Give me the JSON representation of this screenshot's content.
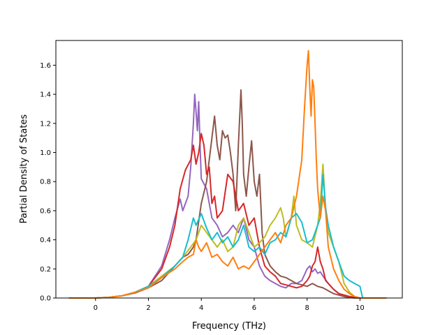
{
  "chart_data": {
    "type": "line",
    "xlabel": "Frequency (THz)",
    "ylabel": "Partial Density of States",
    "xlim": [
      -1.5,
      11.6
    ],
    "ylim": [
      0,
      1.77
    ],
    "xticks": [
      0,
      2,
      4,
      6,
      8,
      10
    ],
    "yticks": [
      0.0,
      0.2,
      0.4,
      0.6,
      0.8,
      1.0,
      1.2,
      1.4,
      1.6
    ],
    "xtick_labels": [
      "0",
      "2",
      "4",
      "6",
      "8",
      "10"
    ],
    "ytick_labels": [
      "0.0",
      "0.2",
      "0.4",
      "0.6",
      "0.8",
      "1.0",
      "1.2",
      "1.4",
      "1.6"
    ],
    "grid": false,
    "series": [
      {
        "color": "#9467bd",
        "x": [
          -1.0,
          0,
          0.5,
          1.0,
          1.5,
          2.0,
          2.5,
          2.8,
          3.0,
          3.2,
          3.3,
          3.5,
          3.6,
          3.7,
          3.75,
          3.8,
          3.85,
          3.9,
          3.95,
          4.0,
          4.2,
          4.4,
          4.6,
          4.8,
          5.0,
          5.2,
          5.4,
          5.6,
          5.8,
          6.0,
          6.2,
          6.4,
          6.6,
          6.8,
          7.0,
          7.2,
          7.4,
          7.6,
          7.8,
          8.0,
          8.1,
          8.2,
          8.3,
          8.4,
          8.5,
          8.6,
          8.8,
          9.0,
          9.2,
          9.4,
          9.6,
          9.8,
          10.0,
          11.0
        ],
        "y": [
          0,
          0,
          0.005,
          0.015,
          0.04,
          0.08,
          0.22,
          0.4,
          0.55,
          0.68,
          0.6,
          0.7,
          0.9,
          1.2,
          1.4,
          1.28,
          1.15,
          1.35,
          1.05,
          0.82,
          0.75,
          0.55,
          0.5,
          0.42,
          0.45,
          0.5,
          0.45,
          0.55,
          0.4,
          0.35,
          0.22,
          0.15,
          0.12,
          0.1,
          0.08,
          0.07,
          0.1,
          0.1,
          0.12,
          0.2,
          0.22,
          0.18,
          0.2,
          0.17,
          0.18,
          0.15,
          0.1,
          0.06,
          0.03,
          0.02,
          0.01,
          0.005,
          0,
          0
        ]
      },
      {
        "color": "#8c564b",
        "x": [
          -1.0,
          0,
          0.5,
          1.0,
          1.5,
          2.0,
          2.5,
          3.0,
          3.3,
          3.5,
          3.7,
          3.8,
          4.0,
          4.2,
          4.4,
          4.5,
          4.6,
          4.7,
          4.8,
          4.9,
          5.0,
          5.1,
          5.2,
          5.3,
          5.4,
          5.5,
          5.55,
          5.6,
          5.7,
          5.8,
          5.9,
          6.0,
          6.1,
          6.2,
          6.3,
          6.4,
          6.6,
          6.8,
          7.0,
          7.2,
          7.4,
          7.6,
          7.8,
          8.0,
          8.2,
          8.4,
          8.6,
          8.8,
          9.0,
          9.2,
          9.4,
          9.6,
          9.8,
          10.0,
          11.0
        ],
        "y": [
          0,
          0,
          0.005,
          0.015,
          0.035,
          0.07,
          0.12,
          0.22,
          0.28,
          0.3,
          0.35,
          0.4,
          0.65,
          0.8,
          1.1,
          1.25,
          1.05,
          0.95,
          1.15,
          1.1,
          1.12,
          1.0,
          0.85,
          0.6,
          1.05,
          1.43,
          1.2,
          0.85,
          0.7,
          0.9,
          1.08,
          0.8,
          0.7,
          0.85,
          0.45,
          0.3,
          0.22,
          0.18,
          0.15,
          0.14,
          0.12,
          0.1,
          0.09,
          0.08,
          0.1,
          0.08,
          0.07,
          0.05,
          0.03,
          0.02,
          0.01,
          0.005,
          0,
          0,
          0
        ]
      },
      {
        "color": "#d62728",
        "x": [
          -1.0,
          0,
          0.5,
          1.0,
          1.5,
          2.0,
          2.5,
          2.8,
          3.0,
          3.2,
          3.4,
          3.6,
          3.7,
          3.8,
          3.9,
          4.0,
          4.1,
          4.2,
          4.3,
          4.4,
          4.5,
          4.6,
          4.8,
          5.0,
          5.2,
          5.4,
          5.6,
          5.8,
          6.0,
          6.2,
          6.4,
          6.6,
          6.8,
          7.0,
          7.2,
          7.4,
          7.6,
          7.8,
          8.0,
          8.1,
          8.2,
          8.3,
          8.4,
          8.5,
          8.6,
          8.7,
          8.8,
          9.0,
          9.2,
          9.4,
          9.6,
          9.8,
          10.0,
          11.0
        ],
        "y": [
          0,
          0,
          0.005,
          0.015,
          0.04,
          0.08,
          0.2,
          0.35,
          0.5,
          0.75,
          0.88,
          0.95,
          1.05,
          0.92,
          1.0,
          1.13,
          1.05,
          0.85,
          0.9,
          0.65,
          0.7,
          0.55,
          0.6,
          0.85,
          0.8,
          0.6,
          0.65,
          0.5,
          0.55,
          0.35,
          0.22,
          0.18,
          0.15,
          0.1,
          0.09,
          0.08,
          0.07,
          0.08,
          0.12,
          0.15,
          0.22,
          0.25,
          0.35,
          0.25,
          0.2,
          0.12,
          0.1,
          0.06,
          0.03,
          0.02,
          0.01,
          0.005,
          0,
          0
        ]
      },
      {
        "color": "#bcbd22",
        "x": [
          -1.0,
          0,
          0.5,
          1.0,
          1.5,
          2.0,
          2.5,
          3.0,
          3.3,
          3.6,
          3.8,
          4.0,
          4.2,
          4.4,
          4.6,
          4.8,
          5.0,
          5.2,
          5.4,
          5.6,
          5.8,
          6.0,
          6.2,
          6.4,
          6.6,
          6.8,
          7.0,
          7.1,
          7.2,
          7.4,
          7.5,
          7.6,
          7.8,
          8.0,
          8.2,
          8.4,
          8.5,
          8.6,
          8.7,
          8.8,
          9.0,
          9.2,
          9.4,
          9.6,
          9.8,
          10.0,
          11.0
        ],
        "y": [
          0,
          0,
          0.005,
          0.015,
          0.04,
          0.08,
          0.15,
          0.22,
          0.28,
          0.35,
          0.4,
          0.5,
          0.45,
          0.4,
          0.35,
          0.4,
          0.32,
          0.35,
          0.5,
          0.55,
          0.45,
          0.35,
          0.38,
          0.42,
          0.5,
          0.55,
          0.62,
          0.55,
          0.42,
          0.55,
          0.7,
          0.5,
          0.4,
          0.38,
          0.35,
          0.5,
          0.65,
          0.92,
          0.6,
          0.45,
          0.35,
          0.25,
          0.1,
          0.04,
          0.01,
          0,
          0
        ]
      },
      {
        "color": "#17becf",
        "x": [
          -1.0,
          0,
          0.5,
          1.0,
          1.5,
          2.0,
          2.5,
          3.0,
          3.3,
          3.5,
          3.7,
          3.8,
          4.0,
          4.2,
          4.4,
          4.6,
          4.8,
          5.0,
          5.2,
          5.4,
          5.6,
          5.8,
          6.0,
          6.2,
          6.4,
          6.6,
          6.8,
          7.0,
          7.2,
          7.4,
          7.6,
          7.8,
          8.0,
          8.2,
          8.4,
          8.5,
          8.6,
          8.7,
          8.8,
          9.0,
          9.2,
          9.4,
          9.6,
          9.8,
          10.0,
          10.1,
          11.0
        ],
        "y": [
          0,
          0,
          0.005,
          0.015,
          0.04,
          0.08,
          0.14,
          0.22,
          0.28,
          0.4,
          0.55,
          0.5,
          0.58,
          0.48,
          0.4,
          0.45,
          0.38,
          0.42,
          0.35,
          0.4,
          0.5,
          0.35,
          0.32,
          0.35,
          0.3,
          0.38,
          0.4,
          0.45,
          0.42,
          0.55,
          0.58,
          0.52,
          0.38,
          0.4,
          0.5,
          0.55,
          0.85,
          0.62,
          0.5,
          0.35,
          0.25,
          0.15,
          0.12,
          0.1,
          0.08,
          0,
          0
        ]
      },
      {
        "color": "#ff7f0e",
        "x": [
          -1.0,
          0,
          0.5,
          1.0,
          1.5,
          2.0,
          2.5,
          3.0,
          3.3,
          3.5,
          3.7,
          3.8,
          3.9,
          4.0,
          4.2,
          4.4,
          4.6,
          4.8,
          5.0,
          5.2,
          5.4,
          5.6,
          5.8,
          6.0,
          6.2,
          6.4,
          6.6,
          6.8,
          7.0,
          7.2,
          7.4,
          7.6,
          7.8,
          7.9,
          8.0,
          8.05,
          8.1,
          8.15,
          8.2,
          8.25,
          8.3,
          8.35,
          8.4,
          8.5,
          8.6,
          8.7,
          8.8,
          9.0,
          9.2,
          9.4,
          9.6,
          9.8,
          10.0,
          11.0
        ],
        "y": [
          0,
          0,
          0.005,
          0.015,
          0.04,
          0.07,
          0.14,
          0.2,
          0.25,
          0.28,
          0.3,
          0.4,
          0.35,
          0.32,
          0.38,
          0.28,
          0.3,
          0.25,
          0.22,
          0.28,
          0.2,
          0.22,
          0.2,
          0.25,
          0.3,
          0.35,
          0.4,
          0.45,
          0.38,
          0.5,
          0.55,
          0.7,
          0.95,
          1.3,
          1.6,
          1.7,
          1.45,
          1.25,
          1.5,
          1.45,
          1.2,
          0.95,
          0.75,
          0.55,
          0.7,
          0.6,
          0.35,
          0.2,
          0.12,
          0.06,
          0.03,
          0.01,
          0,
          0
        ]
      }
    ]
  }
}
